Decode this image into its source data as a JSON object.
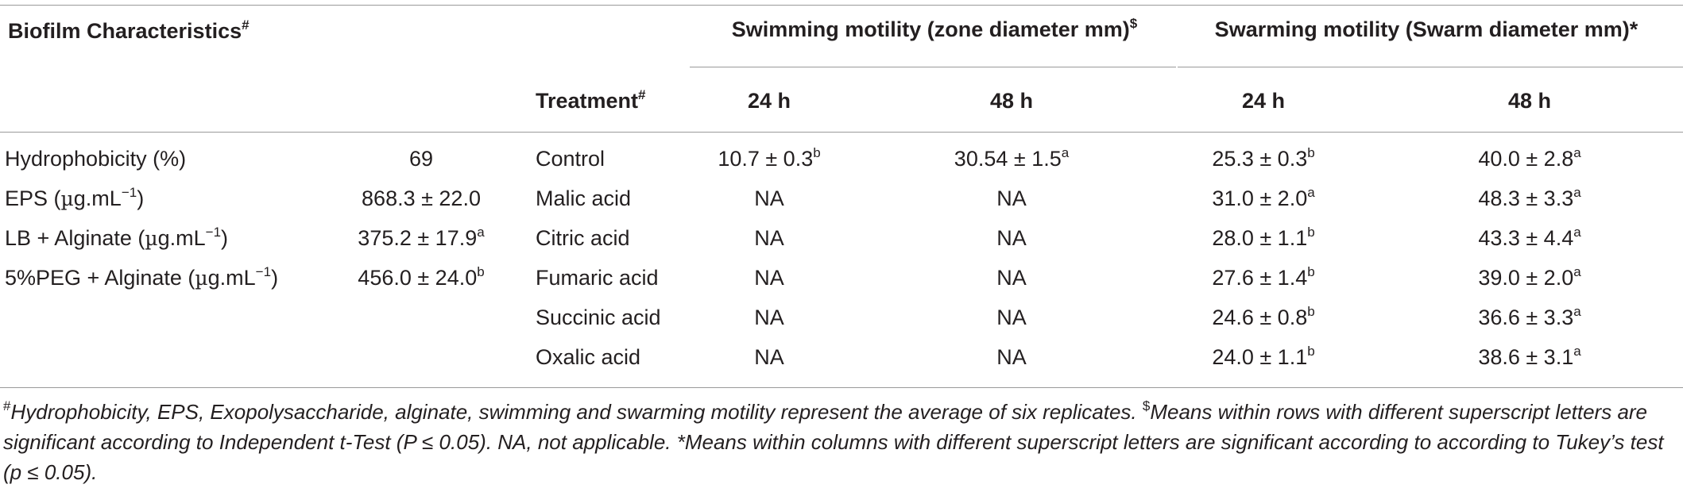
{
  "header": {
    "biofilm_characteristics": "Biofilm Characteristics",
    "biofilm_sup": "#",
    "swimming_group": "Swimming motility (zone diameter mm)",
    "swimming_sup": "$",
    "swarming_group": "Swarming motility (Swarm diameter mm)*",
    "treatment": "Treatment",
    "treatment_sup": "#",
    "h24_a": "24 h",
    "h48_a": "48 h",
    "h24_b": "24 h",
    "h48_b": "48 h"
  },
  "characteristics": [
    {
      "pre": "Hydrophobicity (%)",
      "mu": "",
      "post": "",
      "exp": "",
      "value": "69",
      "sup": ""
    },
    {
      "pre": "EPS (",
      "mu": "µ",
      "post": "g.mL",
      "exp": "−1",
      "tail": ")",
      "value": "868.3 ± 22.0",
      "sup": ""
    },
    {
      "pre": "LB + Alginate (",
      "mu": "µ",
      "post": "g.mL",
      "exp": "−1",
      "tail": ")",
      "value": "375.2 ± 17.9",
      "sup": "a"
    },
    {
      "pre": "5%PEG + Alginate (",
      "mu": "µ",
      "post": "g.mL",
      "exp": "−1",
      "tail": ")",
      "value": "456.0 ± 24.0",
      "sup": "b"
    }
  ],
  "treatments": [
    {
      "name": "Control",
      "swim24": "10.7 ± 0.3",
      "swim24_sup": "b",
      "swim48": "30.54 ± 1.5",
      "swim48_sup": "a",
      "swarm24": "25.3 ± 0.3",
      "swarm24_sup": "b",
      "swarm48": "40.0 ± 2.8",
      "swarm48_sup": "a"
    },
    {
      "name": "Malic acid",
      "swim24": "NA",
      "swim24_sup": "",
      "swim48": "NA",
      "swim48_sup": "",
      "swarm24": "31.0 ± 2.0",
      "swarm24_sup": "a",
      "swarm48": "48.3 ± 3.3",
      "swarm48_sup": "a"
    },
    {
      "name": "Citric acid",
      "swim24": "NA",
      "swim24_sup": "",
      "swim48": "NA",
      "swim48_sup": "",
      "swarm24": "28.0 ± 1.1",
      "swarm24_sup": "b",
      "swarm48": "43.3 ± 4.4",
      "swarm48_sup": "a"
    },
    {
      "name": "Fumaric acid",
      "swim24": "NA",
      "swim24_sup": "",
      "swim48": "NA",
      "swim48_sup": "",
      "swarm24": "27.6 ± 1.4",
      "swarm24_sup": "b",
      "swarm48": "39.0 ± 2.0",
      "swarm48_sup": "a"
    },
    {
      "name": "Succinic acid",
      "swim24": "NA",
      "swim24_sup": "",
      "swim48": "NA",
      "swim48_sup": "",
      "swarm24": "24.6 ± 0.8",
      "swarm24_sup": "b",
      "swarm48": "36.6 ± 3.3",
      "swarm48_sup": "a"
    },
    {
      "name": "Oxalic acid",
      "swim24": "NA",
      "swim24_sup": "",
      "swim48": "NA",
      "swim48_sup": "",
      "swarm24": "24.0 ± 1.1",
      "swarm24_sup": "b",
      "swarm48": "38.6 ± 3.1",
      "swarm48_sup": "a"
    }
  ],
  "footnote": {
    "sup1": "#",
    "text1": "Hydrophobicity, EPS, Exopolysaccharide, alginate, swimming and swarming motility represent the average of six replicates. ",
    "sup2": "$",
    "text2": "Means within rows with different superscript letters are significant according to Independent t-Test (P ≤ 0.05). NA, not applicable. *Means within columns with different superscript letters are significant according to according to Tukey’s test (p ≤ 0.05)."
  }
}
